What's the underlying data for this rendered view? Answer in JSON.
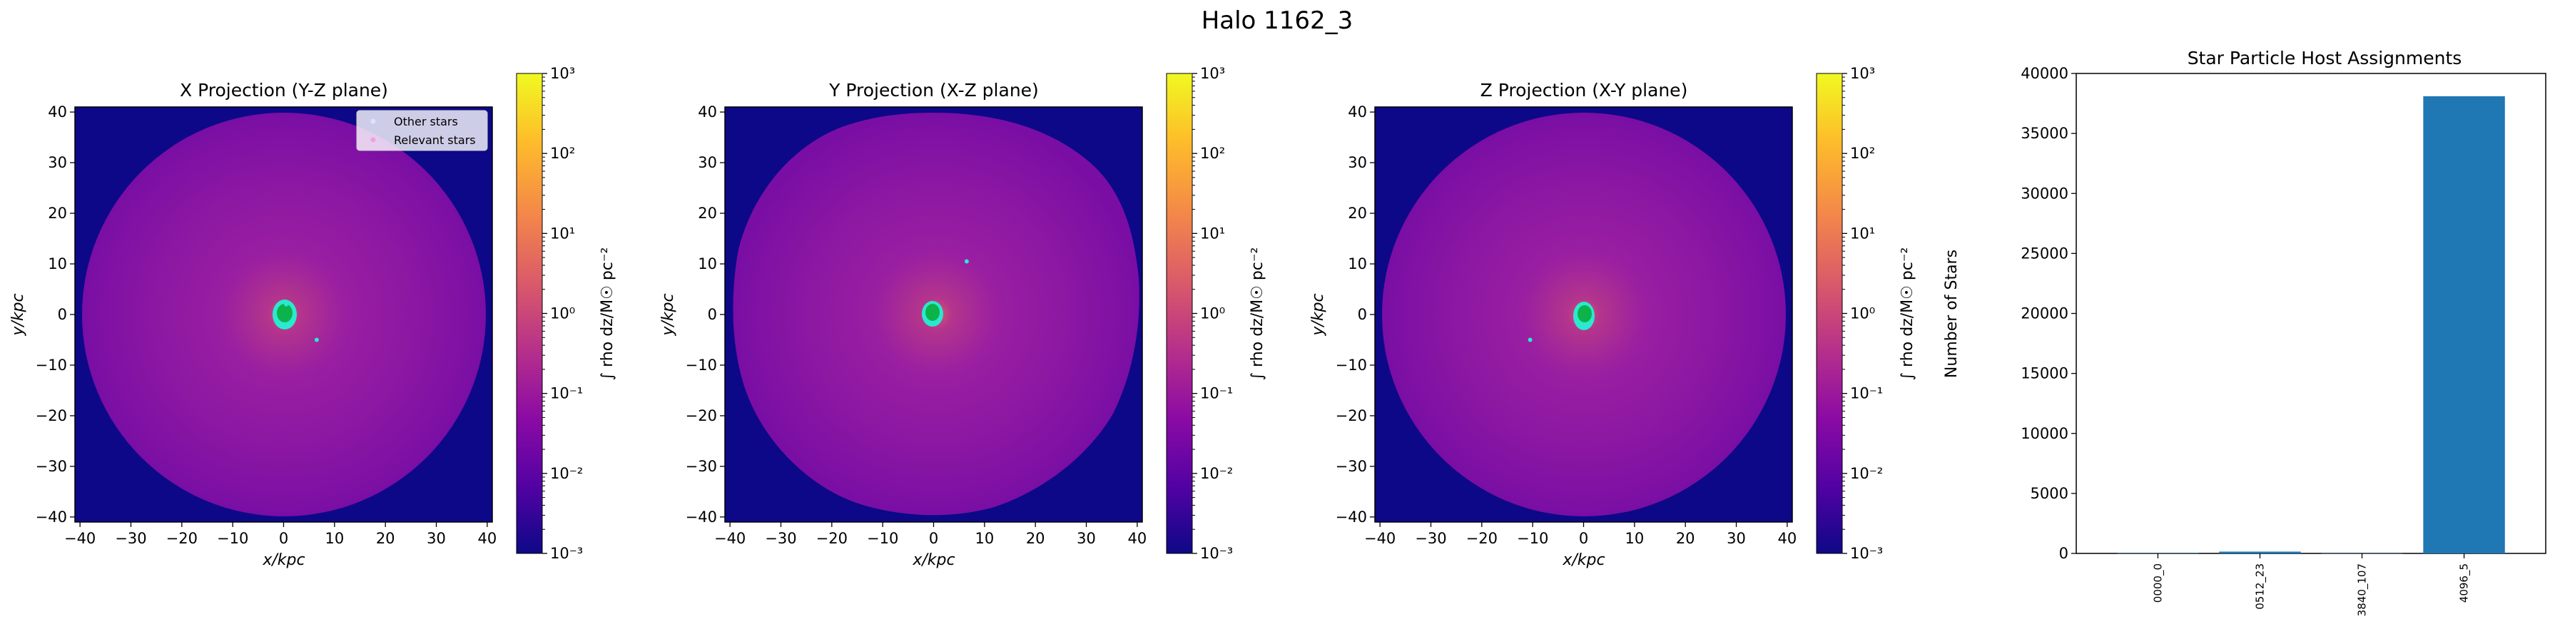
{
  "figure": {
    "suptitle": "Halo 1162_3"
  },
  "colormap": {
    "stops": [
      "#0d0887",
      "#5302a3",
      "#8b0aa5",
      "#b83289",
      "#db5c68",
      "#f48849",
      "#febd2a",
      "#f0f921"
    ]
  },
  "chart_data": [
    {
      "type": "heatmap",
      "title": "X Projection (Y-Z plane)",
      "xlabel": "x/kpc",
      "ylabel": "y/kpc",
      "xlim": [
        -41,
        41
      ],
      "ylim": [
        -41,
        41
      ],
      "xticks": [
        -40,
        -30,
        -20,
        -10,
        0,
        10,
        20,
        30,
        40
      ],
      "yticks": [
        -40,
        -30,
        -20,
        -10,
        0,
        10,
        20,
        30,
        40
      ],
      "colorbar": {
        "label": "∫ rho dz/M☉ pc⁻²",
        "scale": "log",
        "range": [
          0.001,
          1000
        ],
        "ticks": [
          "10⁻³",
          "10⁻²",
          "10⁻¹",
          "10⁰",
          "10¹",
          "10²",
          "10³"
        ]
      },
      "disk_radius_kpc": 40,
      "relevant_stars_center": [
        0,
        0
      ],
      "other_stars_points": [
        [
          6.5,
          -5
        ],
        [
          0.5,
          2
        ]
      ],
      "legend": {
        "placement": "top-right",
        "entries": [
          "Other stars",
          "Relevant stars"
        ]
      }
    },
    {
      "type": "heatmap",
      "title": "Y Projection (X-Z plane)",
      "xlabel": "x/kpc",
      "ylabel": "y/kpc",
      "xlim": [
        -41,
        41
      ],
      "ylim": [
        -41,
        41
      ],
      "xticks": [
        -40,
        -30,
        -20,
        -10,
        0,
        10,
        20,
        30,
        40
      ],
      "yticks": [
        -40,
        -30,
        -20,
        -10,
        0,
        10,
        20,
        30,
        40
      ],
      "colorbar": {
        "label": "∫ rho dz/M☉ pc⁻²",
        "scale": "log",
        "range": [
          0.001,
          1000
        ],
        "ticks": [
          "10⁻³",
          "10⁻²",
          "10⁻¹",
          "10⁰",
          "10¹",
          "10²",
          "10³"
        ]
      },
      "disk_radius_kpc": 40,
      "relevant_stars_center": [
        0,
        0
      ],
      "other_stars_points": [
        [
          6.5,
          10.5
        ]
      ]
    },
    {
      "type": "heatmap",
      "title": "Z Projection (X-Y plane)",
      "xlabel": "x/kpc",
      "ylabel": "y/kpc",
      "xlim": [
        -41,
        41
      ],
      "ylim": [
        -41,
        41
      ],
      "xticks": [
        -40,
        -30,
        -20,
        -10,
        0,
        10,
        20,
        30,
        40
      ],
      "yticks": [
        -40,
        -30,
        -20,
        -10,
        0,
        10,
        20,
        30,
        40
      ],
      "colorbar": {
        "label": "∫ rho dz/M☉ pc⁻²",
        "scale": "log",
        "range": [
          0.001,
          1000
        ],
        "ticks": [
          "10⁻³",
          "10⁻²",
          "10⁻¹",
          "10⁰",
          "10¹",
          "10²",
          "10³"
        ]
      },
      "disk_radius_kpc": 40,
      "relevant_stars_center": [
        0,
        0
      ],
      "other_stars_points": [
        [
          -10.5,
          -5
        ]
      ]
    },
    {
      "type": "bar",
      "title": "Star Particle Host Assignments",
      "xlabel": "",
      "ylabel": "Number of Stars",
      "categories": [
        "0000_0",
        "0512_23",
        "3840_107",
        "4096_5"
      ],
      "values": [
        20,
        150,
        10,
        38100
      ],
      "ylim": [
        0,
        40000
      ],
      "yticks": [
        0,
        5000,
        10000,
        15000,
        20000,
        25000,
        30000,
        35000,
        40000
      ],
      "color": "#1f77b4"
    }
  ]
}
